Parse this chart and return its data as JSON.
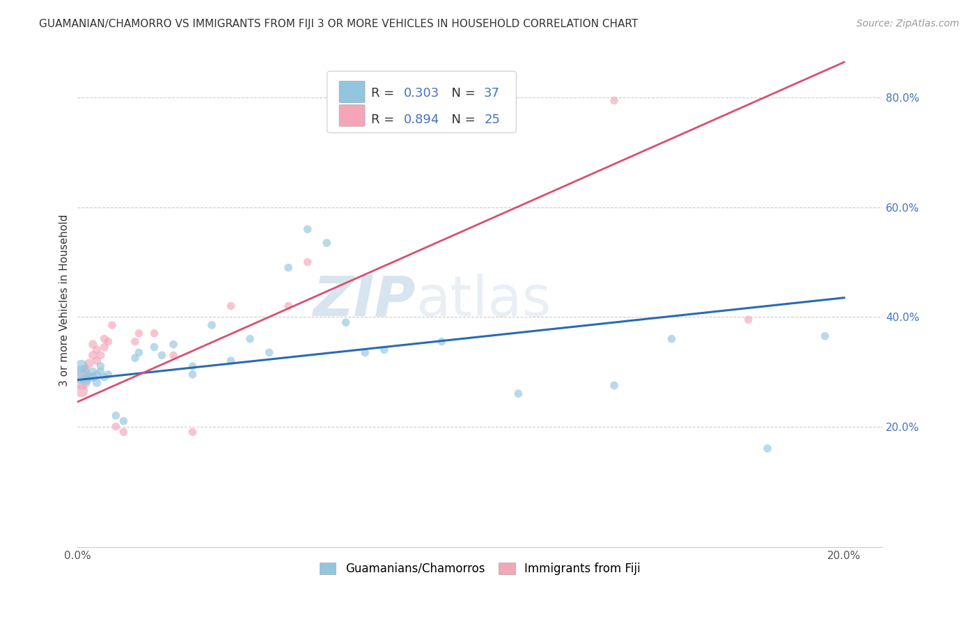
{
  "title": "GUAMANIAN/CHAMORRO VS IMMIGRANTS FROM FIJI 3 OR MORE VEHICLES IN HOUSEHOLD CORRELATION CHART",
  "source": "Source: ZipAtlas.com",
  "ylabel": "3 or more Vehicles in Household",
  "xlim": [
    0.0,
    0.21
  ],
  "ylim": [
    -0.02,
    0.88
  ],
  "yticks": [
    0.2,
    0.4,
    0.6,
    0.8
  ],
  "yticklabels": [
    "20.0%",
    "40.0%",
    "60.0%",
    "80.0%"
  ],
  "blue_R": 0.303,
  "blue_N": 37,
  "pink_R": 0.894,
  "pink_N": 25,
  "blue_color": "#92c5de",
  "pink_color": "#f4a6b8",
  "blue_line_color": "#2b6ab3",
  "pink_line_color": "#d94f6e",
  "watermark_zip": "ZIP",
  "watermark_atlas": "atlas",
  "blue_scatter_x": [
    0.001,
    0.001,
    0.002,
    0.003,
    0.004,
    0.004,
    0.005,
    0.005,
    0.006,
    0.006,
    0.007,
    0.008,
    0.01,
    0.012,
    0.015,
    0.016,
    0.02,
    0.022,
    0.025,
    0.03,
    0.03,
    0.035,
    0.04,
    0.045,
    0.05,
    0.055,
    0.06,
    0.065,
    0.07,
    0.075,
    0.08,
    0.095,
    0.115,
    0.14,
    0.155,
    0.18,
    0.195
  ],
  "blue_scatter_y": [
    0.295,
    0.31,
    0.285,
    0.29,
    0.29,
    0.3,
    0.28,
    0.295,
    0.3,
    0.31,
    0.29,
    0.295,
    0.22,
    0.21,
    0.325,
    0.335,
    0.345,
    0.33,
    0.35,
    0.295,
    0.31,
    0.385,
    0.32,
    0.36,
    0.335,
    0.49,
    0.56,
    0.535,
    0.39,
    0.335,
    0.34,
    0.355,
    0.26,
    0.275,
    0.36,
    0.16,
    0.365
  ],
  "blue_scatter_size": [
    350,
    180,
    130,
    100,
    90,
    80,
    80,
    75,
    75,
    70,
    70,
    70,
    70,
    70,
    70,
    70,
    70,
    70,
    70,
    70,
    70,
    70,
    70,
    70,
    70,
    70,
    70,
    70,
    70,
    70,
    70,
    70,
    70,
    70,
    70,
    70,
    70
  ],
  "pink_scatter_x": [
    0.001,
    0.001,
    0.002,
    0.003,
    0.004,
    0.004,
    0.005,
    0.005,
    0.006,
    0.007,
    0.007,
    0.008,
    0.009,
    0.01,
    0.012,
    0.015,
    0.016,
    0.02,
    0.025,
    0.03,
    0.04,
    0.055,
    0.06,
    0.14,
    0.175
  ],
  "pink_scatter_y": [
    0.285,
    0.265,
    0.305,
    0.315,
    0.33,
    0.35,
    0.32,
    0.34,
    0.33,
    0.345,
    0.36,
    0.355,
    0.385,
    0.2,
    0.19,
    0.355,
    0.37,
    0.37,
    0.33,
    0.19,
    0.42,
    0.42,
    0.5,
    0.795,
    0.395
  ],
  "pink_scatter_size": [
    400,
    180,
    100,
    90,
    85,
    80,
    80,
    75,
    75,
    75,
    75,
    70,
    70,
    70,
    70,
    70,
    70,
    70,
    70,
    70,
    70,
    70,
    70,
    70,
    70
  ],
  "legend_label_blue": "Guamanians/Chamorros",
  "legend_label_pink": "Immigrants from Fiji",
  "blue_line_x0": 0.0,
  "blue_line_y0": 0.285,
  "blue_line_x1": 0.2,
  "blue_line_y1": 0.435,
  "pink_line_x0": 0.0,
  "pink_line_y0": 0.245,
  "pink_line_x1": 0.2,
  "pink_line_y1": 0.865
}
